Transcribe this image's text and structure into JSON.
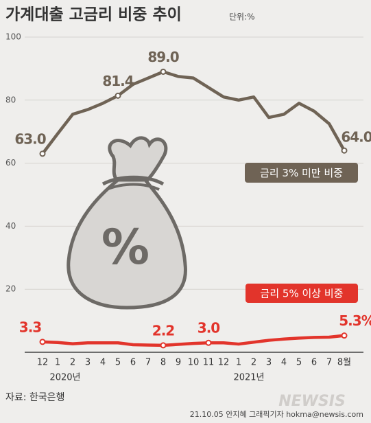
{
  "chart_data": {
    "type": "line",
    "title": "가계대출 고금리 비중 추이",
    "unit": "단위:%",
    "categories": [
      "12",
      "1",
      "2",
      "3",
      "4",
      "5",
      "6",
      "7",
      "8",
      "9",
      "10",
      "11",
      "12",
      "1",
      "2",
      "3",
      "4",
      "5",
      "6",
      "7",
      "8월"
    ],
    "year_labels": [
      "2020년",
      "2021년"
    ],
    "series": [
      {
        "name": "금리 3% 미만 비중",
        "color": "#6f6355",
        "values": [
          63.0,
          69.3,
          75.5,
          77,
          79,
          81.4,
          85,
          87,
          89.0,
          87.5,
          87,
          84,
          81,
          80,
          81,
          74.5,
          75.5,
          79,
          76.5,
          72.5,
          64.0
        ],
        "value_labels": [
          "63.0",
          null,
          null,
          null,
          null,
          "81.4",
          null,
          null,
          "89.0",
          null,
          null,
          null,
          null,
          null,
          null,
          null,
          null,
          null,
          null,
          null,
          "64.0"
        ]
      },
      {
        "name": "금리 5% 이상 비중",
        "color": "#e2342b",
        "values": [
          3.3,
          3.1,
          2.7,
          3.0,
          3.0,
          3.0,
          2.4,
          2.3,
          2.2,
          2.5,
          2.8,
          3.0,
          3.0,
          2.6,
          3.2,
          3.8,
          4.2,
          4.5,
          4.7,
          4.8,
          5.3
        ],
        "value_labels": [
          "3.3",
          null,
          null,
          null,
          null,
          null,
          null,
          null,
          "2.2",
          null,
          null,
          "3.0",
          null,
          null,
          null,
          null,
          null,
          null,
          null,
          null,
          "5.3%"
        ]
      }
    ],
    "ylim": [
      0,
      100
    ],
    "yticks": [
      20,
      40,
      60,
      80,
      100
    ],
    "grid": true,
    "icon_text": "%",
    "source": "자료: 한국은행",
    "credit": "21.10.05 안지혜 그래픽기자 hokma@newsis.com",
    "watermark": "NEWSIS"
  }
}
